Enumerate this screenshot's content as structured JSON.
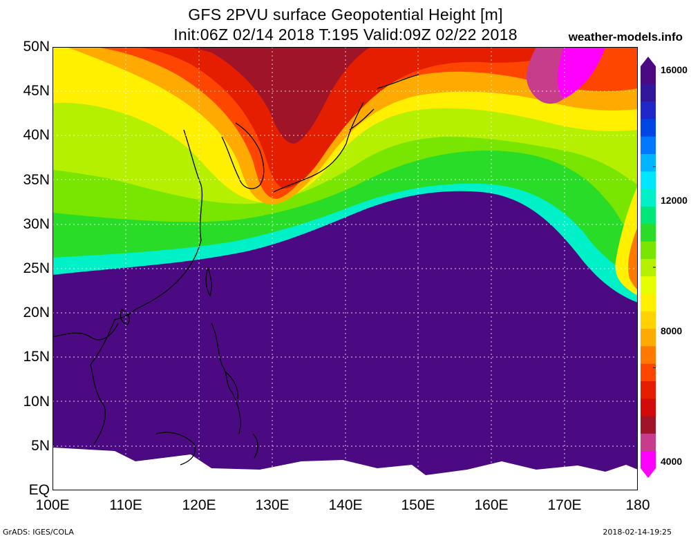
{
  "header": {
    "title_line1": "GFS 2PVU surface Geopotential Height [m]",
    "title_line2": "Init:06Z 02/14 2018 T:195 Valid:09Z 02/22 2018",
    "site": "weather-models.info"
  },
  "axes": {
    "lat_labels": [
      "50N",
      "45N",
      "40N",
      "35N",
      "30N",
      "25N",
      "20N",
      "15N",
      "10N",
      "5N",
      "EQ"
    ],
    "lon_labels": [
      "100E",
      "110E",
      "120E",
      "130E",
      "140E",
      "150E",
      "160E",
      "170E",
      "180"
    ]
  },
  "colorbar": {
    "labels": [
      "16000",
      "12000",
      "8000",
      "4000"
    ],
    "colors": [
      "#ff00ff",
      "#c83c8c",
      "#a01428",
      "#d20a0a",
      "#e61e00",
      "#ff4600",
      "#ff7800",
      "#ffaa00",
      "#ffd200",
      "#fff000",
      "#e6ff00",
      "#b4f000",
      "#78e600",
      "#28dc28",
      "#00e678",
      "#00f0c8",
      "#00e6ff",
      "#00b4ff",
      "#0078ff",
      "#0046e6",
      "#1e28c8",
      "#32169b",
      "#4b0a82"
    ]
  },
  "footer": {
    "left": "GrADS: IGES/COLA",
    "right": "2018-02-14-19:25"
  }
}
